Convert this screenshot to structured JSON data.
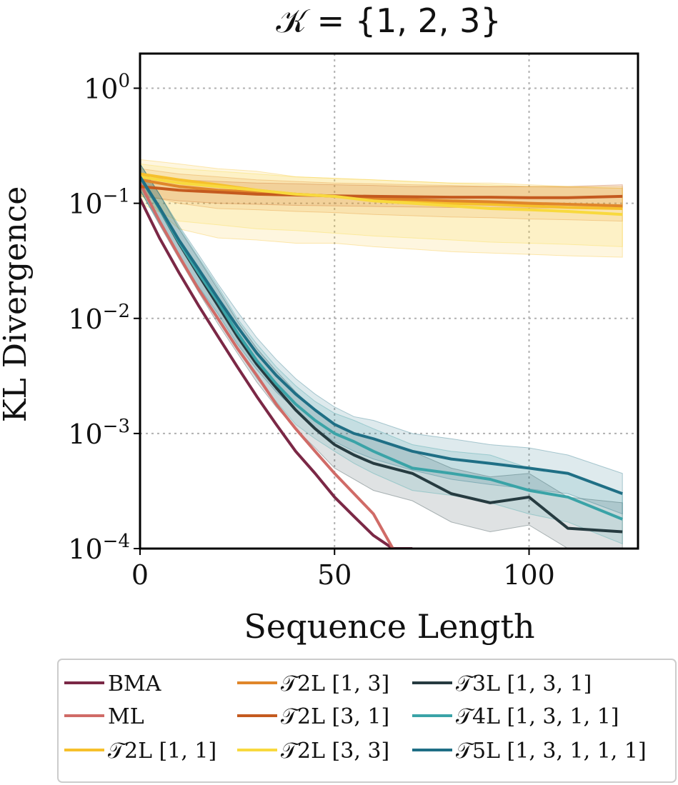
{
  "chart_data": {
    "type": "line",
    "title": "𝒦 = {1, 2, 3}",
    "xlabel": "Sequence Length",
    "ylabel": "KL Divergence",
    "x_scale": "linear",
    "y_scale": "log",
    "xlim": [
      0,
      128
    ],
    "ylim": [
      0.0001,
      2.0
    ],
    "grid": true,
    "legend_position": "bottom",
    "x_ticks": [
      {
        "value": 0,
        "label": "0"
      },
      {
        "value": 50,
        "label": "50"
      },
      {
        "value": 100,
        "label": "100"
      }
    ],
    "y_ticks": [
      {
        "value": 1,
        "base": "10",
        "exp": "0"
      },
      {
        "value": 0.1,
        "base": "10",
        "exp": "−1"
      },
      {
        "value": 0.01,
        "base": "10",
        "exp": "−2"
      },
      {
        "value": 0.001,
        "base": "10",
        "exp": "−3"
      },
      {
        "value": 0.0001,
        "base": "10",
        "exp": "−4"
      }
    ],
    "series": [
      {
        "name": "BMA",
        "color": "#7b2846",
        "band": false,
        "x": [
          0,
          5,
          10,
          15,
          20,
          25,
          30,
          35,
          40,
          45,
          50,
          55,
          60,
          65,
          70
        ],
        "values": [
          0.11,
          0.05,
          0.025,
          0.013,
          0.007,
          0.0038,
          0.0021,
          0.0012,
          0.0007,
          0.00045,
          0.00028,
          0.00019,
          0.00013,
          0.0001,
          0.0001
        ]
      },
      {
        "name": "ML",
        "color": "#d06b67",
        "band": false,
        "x": [
          0,
          5,
          10,
          15,
          20,
          25,
          30,
          35,
          40,
          45,
          50,
          55,
          60,
          65
        ],
        "values": [
          0.15,
          0.07,
          0.035,
          0.018,
          0.01,
          0.0055,
          0.0032,
          0.0018,
          0.0011,
          0.0007,
          0.00045,
          0.0003,
          0.0002,
          0.0001
        ]
      },
      {
        "name": "𝒯2L [1, 1]",
        "color": "#f6c02b",
        "band": true,
        "x": [
          0,
          10,
          20,
          30,
          40,
          50,
          60,
          70,
          80,
          90,
          100,
          110,
          124
        ],
        "values": [
          0.18,
          0.16,
          0.145,
          0.13,
          0.12,
          0.115,
          0.11,
          0.105,
          0.1,
          0.098,
          0.095,
          0.092,
          0.09
        ],
        "upper": [
          0.24,
          0.22,
          0.2,
          0.19,
          0.17,
          0.165,
          0.16,
          0.155,
          0.15,
          0.15,
          0.145,
          0.14,
          0.14
        ],
        "lower": [
          0.12,
          0.06,
          0.05,
          0.048,
          0.045,
          0.045,
          0.042,
          0.04,
          0.038,
          0.037,
          0.036,
          0.035,
          0.034
        ]
      },
      {
        "name": "𝒯2L [1, 3]",
        "color": "#e0862a",
        "band": true,
        "x": [
          0,
          10,
          20,
          30,
          40,
          50,
          60,
          70,
          80,
          90,
          100,
          110,
          124
        ],
        "values": [
          0.16,
          0.14,
          0.13,
          0.125,
          0.12,
          0.115,
          0.11,
          0.108,
          0.105,
          0.103,
          0.1,
          0.098,
          0.095
        ],
        "upper": [
          0.2,
          0.18,
          0.17,
          0.16,
          0.155,
          0.15,
          0.148,
          0.145,
          0.143,
          0.14,
          0.14,
          0.138,
          0.135
        ],
        "lower": [
          0.12,
          0.1,
          0.09,
          0.088,
          0.085,
          0.083,
          0.08,
          0.078,
          0.076,
          0.075,
          0.073,
          0.072,
          0.07
        ]
      },
      {
        "name": "𝒯2L [3, 1]",
        "color": "#c45a1f",
        "band": true,
        "x": [
          0,
          10,
          20,
          30,
          40,
          50,
          60,
          70,
          80,
          90,
          100,
          110,
          124
        ],
        "values": [
          0.14,
          0.13,
          0.125,
          0.12,
          0.118,
          0.116,
          0.115,
          0.114,
          0.113,
          0.113,
          0.112,
          0.112,
          0.115
        ],
        "upper": [
          0.17,
          0.16,
          0.155,
          0.15,
          0.148,
          0.145,
          0.143,
          0.14,
          0.14,
          0.14,
          0.14,
          0.14,
          0.145
        ],
        "lower": [
          0.115,
          0.105,
          0.1,
          0.098,
          0.096,
          0.095,
          0.094,
          0.093,
          0.092,
          0.092,
          0.091,
          0.091,
          0.092
        ]
      },
      {
        "name": "𝒯2L [3, 3]",
        "color": "#f8d93e",
        "band": true,
        "x": [
          0,
          10,
          20,
          30,
          40,
          50,
          60,
          70,
          80,
          90,
          100,
          110,
          124
        ],
        "values": [
          0.17,
          0.15,
          0.14,
          0.13,
          0.12,
          0.115,
          0.105,
          0.1,
          0.095,
          0.09,
          0.088,
          0.085,
          0.08
        ],
        "upper": [
          0.22,
          0.2,
          0.19,
          0.18,
          0.17,
          0.165,
          0.16,
          0.155,
          0.15,
          0.145,
          0.14,
          0.14,
          0.135
        ],
        "lower": [
          0.1,
          0.07,
          0.065,
          0.06,
          0.058,
          0.055,
          0.052,
          0.05,
          0.048,
          0.046,
          0.045,
          0.044,
          0.042
        ]
      },
      {
        "name": "𝒯3L [1, 3, 1]",
        "color": "#263b40",
        "band": true,
        "x": [
          0,
          5,
          10,
          15,
          20,
          25,
          30,
          35,
          40,
          45,
          50,
          55,
          60,
          70,
          80,
          90,
          100,
          110,
          124
        ],
        "values": [
          0.17,
          0.09,
          0.045,
          0.024,
          0.013,
          0.007,
          0.004,
          0.0025,
          0.0016,
          0.0011,
          0.0008,
          0.00065,
          0.00055,
          0.00045,
          0.0003,
          0.00025,
          0.00028,
          0.00015,
          0.00014
        ],
        "upper": [
          0.22,
          0.12,
          0.06,
          0.033,
          0.018,
          0.0095,
          0.0055,
          0.0035,
          0.0023,
          0.0016,
          0.0012,
          0.001,
          0.0009,
          0.0007,
          0.0005,
          0.00042,
          0.00045,
          0.00028,
          0.00025
        ],
        "lower": [
          0.13,
          0.065,
          0.033,
          0.017,
          0.009,
          0.005,
          0.0028,
          0.0017,
          0.0011,
          0.00075,
          0.0005,
          0.0004,
          0.00032,
          0.00026,
          0.00017,
          0.00014,
          0.00016,
          0.0001,
          0.0001
        ]
      },
      {
        "name": "𝒯4L [1, 3, 1, 1]",
        "color": "#3aa3a7",
        "band": true,
        "x": [
          0,
          5,
          10,
          15,
          20,
          25,
          30,
          35,
          40,
          45,
          50,
          55,
          60,
          70,
          80,
          90,
          100,
          110,
          124
        ],
        "values": [
          0.17,
          0.09,
          0.046,
          0.025,
          0.014,
          0.0075,
          0.0043,
          0.0027,
          0.0018,
          0.0013,
          0.001,
          0.00085,
          0.0007,
          0.0005,
          0.00045,
          0.0004,
          0.00032,
          0.00028,
          0.00018
        ],
        "upper": [
          0.22,
          0.12,
          0.062,
          0.034,
          0.019,
          0.01,
          0.006,
          0.0038,
          0.0026,
          0.0019,
          0.0015,
          0.0013,
          0.0011,
          0.0008,
          0.0007,
          0.00065,
          0.0005,
          0.00045,
          0.0003
        ],
        "lower": [
          0.13,
          0.066,
          0.034,
          0.018,
          0.01,
          0.0054,
          0.003,
          0.0019,
          0.0012,
          0.0009,
          0.0007,
          0.00055,
          0.00045,
          0.00032,
          0.00029,
          0.00025,
          0.0002,
          0.00017,
          0.00011
        ]
      },
      {
        "name": "𝒯5L [1, 3, 1, 1, 1]",
        "color": "#1f6f85",
        "band": true,
        "x": [
          0,
          5,
          10,
          15,
          20,
          25,
          30,
          35,
          40,
          45,
          50,
          55,
          60,
          70,
          80,
          90,
          100,
          110,
          124
        ],
        "values": [
          0.17,
          0.092,
          0.048,
          0.027,
          0.015,
          0.0085,
          0.005,
          0.0032,
          0.0022,
          0.0016,
          0.0012,
          0.001,
          0.0009,
          0.0007,
          0.0006,
          0.00055,
          0.0005,
          0.00045,
          0.0003
        ],
        "upper": [
          0.22,
          0.12,
          0.064,
          0.036,
          0.02,
          0.0115,
          0.0068,
          0.0044,
          0.003,
          0.0022,
          0.0017,
          0.0014,
          0.0013,
          0.001,
          0.0009,
          0.0008,
          0.00075,
          0.00065,
          0.00045
        ],
        "lower": [
          0.13,
          0.068,
          0.035,
          0.019,
          0.011,
          0.006,
          0.0036,
          0.0023,
          0.0016,
          0.0011,
          0.00085,
          0.0007,
          0.0006,
          0.00048,
          0.0004,
          0.00036,
          0.00033,
          0.0003,
          0.0002
        ]
      }
    ],
    "legend": {
      "columns": [
        [
          "BMA",
          "ML",
          "𝒯2L [1, 1]"
        ],
        [
          "𝒯2L [1, 3]",
          "𝒯2L [3, 1]",
          "𝒯2L [3, 3]"
        ],
        [
          "𝒯3L [1, 3, 1]",
          "𝒯4L [1, 3, 1, 1]",
          "𝒯5L [1, 3, 1, 1, 1]"
        ]
      ]
    }
  }
}
